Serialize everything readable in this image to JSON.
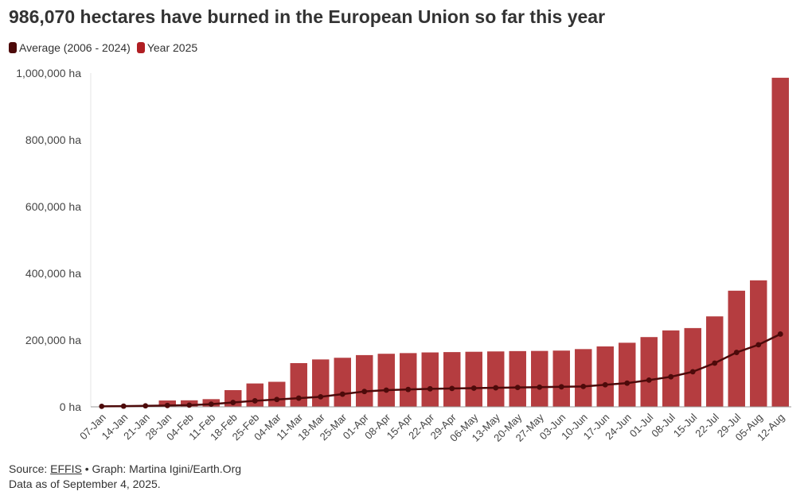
{
  "header": {
    "title": "986,070 hectares have burned in the European Union so far this year"
  },
  "legend": [
    {
      "label": "Average (2006 - 2024)",
      "color": "#4d0a0a"
    },
    {
      "label": "Year 2025",
      "color": "#b01e23"
    }
  ],
  "footer": {
    "source_prefix": "Source: ",
    "source_link": "EFFIS",
    "source_suffix": " • Graph: Martina Igini/Earth.Org",
    "data_note": "Data as of September 4, 2025."
  },
  "colors": {
    "bar": "#b53d40",
    "line": "#4d0a0a",
    "axis_text": "#444444"
  },
  "chart_data": {
    "type": "bar",
    "categories": [
      "07-Jan",
      "14-Jan",
      "21-Jan",
      "28-Jan",
      "04-Feb",
      "11-Feb",
      "18-Feb",
      "25-Feb",
      "04-Mar",
      "11-Mar",
      "18-Mar",
      "25-Mar",
      "01-Apr",
      "08-Apr",
      "15-Apr",
      "22-Apr",
      "29-Apr",
      "06-May",
      "13-May",
      "20-May",
      "27-May",
      "03-Jun",
      "10-Jun",
      "17-Jun",
      "24-Jun",
      "01-Jul",
      "08-Jul",
      "15-Jul",
      "22-Jul",
      "29-Jul",
      "05-Aug",
      "12-Aug"
    ],
    "series": [
      {
        "name": "Year 2025",
        "kind": "bar",
        "values": [
          1000,
          2000,
          3000,
          19000,
          19500,
          23000,
          50000,
          70000,
          75000,
          131000,
          142000,
          147000,
          155000,
          159000,
          161000,
          163000,
          164000,
          165000,
          166000,
          167000,
          167500,
          168500,
          173000,
          181000,
          192000,
          209000,
          229000,
          236000,
          271000,
          348000,
          379000,
          986070
        ]
      },
      {
        "name": "Average (2006 - 2024)",
        "kind": "line",
        "values": [
          1500,
          2000,
          3000,
          4000,
          5000,
          8000,
          13000,
          18000,
          22000,
          26000,
          30000,
          38000,
          46000,
          50000,
          52000,
          54000,
          55000,
          56000,
          57000,
          58000,
          59000,
          60000,
          61000,
          66000,
          71000,
          80000,
          90000,
          105000,
          131000,
          163000,
          186000,
          218000
        ]
      }
    ],
    "yticks": [
      "0 ha",
      "200,000 ha",
      "400,000 ha",
      "600,000 ha",
      "800,000 ha",
      "1,000,000 ha"
    ],
    "ytick_values": [
      0,
      200000,
      400000,
      600000,
      800000,
      1000000
    ],
    "ylim": [
      0,
      1000000
    ],
    "grid": false,
    "legend_position": "top-left"
  }
}
